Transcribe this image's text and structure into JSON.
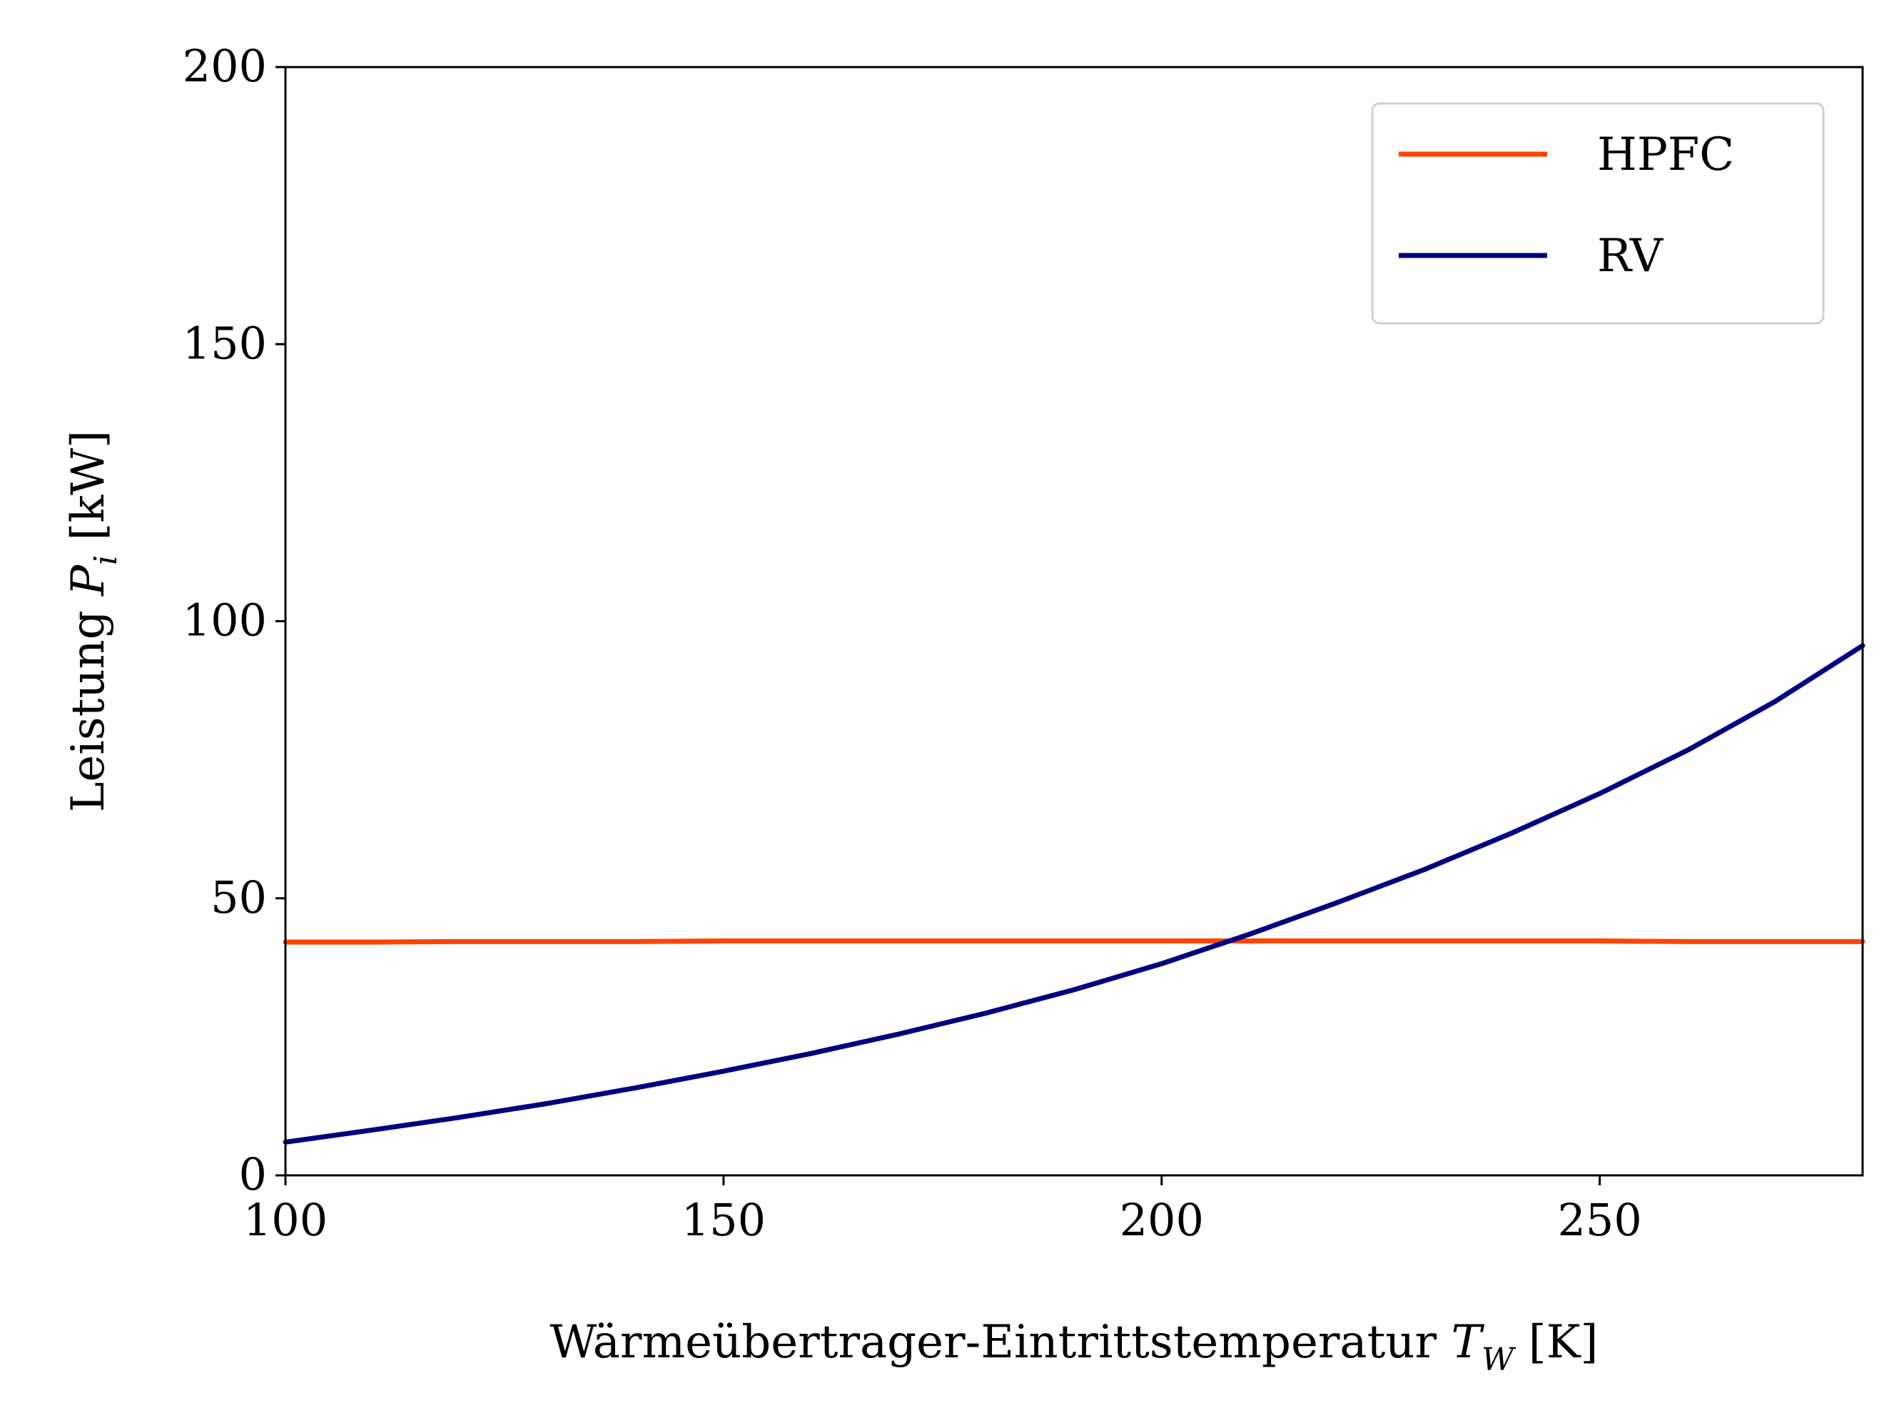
{
  "chart_data": {
    "type": "line",
    "title": "",
    "xlabel": "Wärmeübertrager-Eintrittstemperatur T_W [K]",
    "xlabel_main": "Wärmeübertrager-Eintrittstemperatur ",
    "xlabel_symbol": "T",
    "xlabel_subscript": "W",
    "xlabel_unit": " [K]",
    "ylabel": "Leistung P_i [kW]",
    "ylabel_main": "Leistung ",
    "ylabel_symbol": "P",
    "ylabel_subscript": "i",
    "ylabel_unit": " [kW]",
    "xlim": [
      100,
      280
    ],
    "ylim": [
      0,
      200
    ],
    "xticks": [
      100,
      150,
      200,
      250
    ],
    "yticks": [
      0,
      50,
      100,
      150,
      200
    ],
    "xtick_labels": [
      "100",
      "150",
      "200",
      "250"
    ],
    "ytick_labels": [
      "0",
      "50",
      "100",
      "150",
      "200"
    ],
    "grid": false,
    "legend_position": "top-right",
    "series": [
      {
        "name": "HPFC",
        "color": "#ff4500",
        "x": [
          100,
          110,
          120,
          130,
          140,
          150,
          160,
          170,
          180,
          190,
          200,
          210,
          220,
          230,
          240,
          250,
          260,
          270,
          280
        ],
        "y": [
          42.1,
          42.1,
          42.2,
          42.2,
          42.2,
          42.3,
          42.3,
          42.3,
          42.3,
          42.3,
          42.3,
          42.3,
          42.3,
          42.3,
          42.3,
          42.3,
          42.2,
          42.2,
          42.2
        ]
      },
      {
        "name": "RV",
        "color": "#000080",
        "x": [
          100,
          110,
          120,
          130,
          140,
          150,
          160,
          170,
          180,
          190,
          200,
          210,
          220,
          230,
          240,
          250,
          260,
          270,
          280
        ],
        "y": [
          6.0,
          8.2,
          10.5,
          13.0,
          15.8,
          18.8,
          22.0,
          25.5,
          29.3,
          33.5,
          38.2,
          43.5,
          49.2,
          55.2,
          61.8,
          68.9,
          76.7,
          85.5,
          95.6
        ]
      }
    ]
  }
}
